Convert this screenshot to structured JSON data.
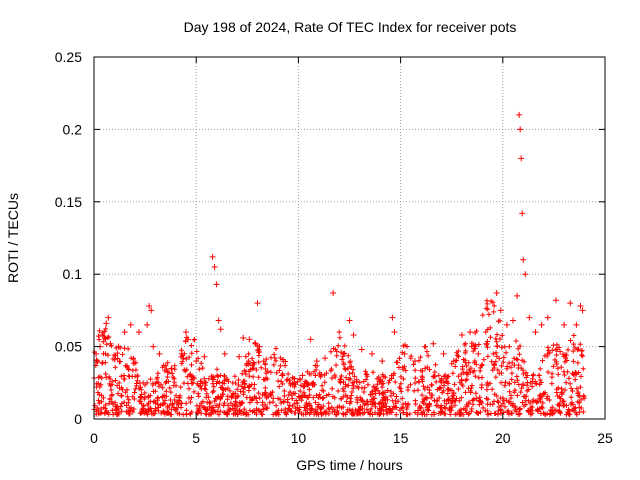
{
  "chart_data": {
    "type": "scatter",
    "title": "Day 198 of 2024, Rate Of TEC Index for receiver pots",
    "xlabel": "GPS time / hours",
    "ylabel": "ROTI / TECUs",
    "xlim": [
      0,
      25
    ],
    "ylim": [
      0,
      0.25
    ],
    "x_ticks": [
      0,
      5,
      10,
      15,
      20,
      25
    ],
    "y_ticks": [
      0,
      0.05,
      0.1,
      0.15,
      0.2,
      0.25
    ],
    "x_tick_labels": [
      "0",
      "5",
      "10",
      "15",
      "20",
      "25"
    ],
    "y_tick_labels": [
      "0",
      "0.05",
      "0.1",
      "0.15",
      "0.2",
      "0.25"
    ],
    "grid": true,
    "marker": "+",
    "color": "#ff0000",
    "series": [
      {
        "name": "pots",
        "x": [
          0.1,
          0.3,
          0.4,
          0.6,
          0.7,
          0.8,
          1.2,
          1.5,
          1.8,
          2.2,
          2.6,
          2.7,
          2.8,
          2.9,
          3.2,
          3.8,
          4.3,
          4.5,
          4.6,
          5.0,
          5.4,
          5.8,
          5.9,
          6.0,
          6.1,
          6.2,
          6.4,
          7.1,
          7.3,
          7.6,
          7.9,
          8.0,
          8.1,
          8.3,
          8.5,
          9.2,
          9.8,
          10.2,
          10.6,
          10.9,
          11.3,
          11.7,
          12.2,
          12.5,
          12.7,
          13.1,
          13.6,
          14.1,
          14.6,
          14.7,
          15.2,
          15.7,
          16.2,
          16.6,
          17.1,
          17.6,
          18.0,
          18.4,
          18.8,
          19.2,
          19.7,
          19.9,
          20.2,
          20.5,
          20.7,
          20.8,
          20.85,
          20.9,
          20.95,
          21.0,
          21.1,
          21.3,
          21.6,
          21.9,
          22.2,
          22.6,
          23.0,
          23.3,
          23.6,
          23.8,
          23.9
        ],
        "y": [
          0.045,
          0.05,
          0.058,
          0.066,
          0.07,
          0.052,
          0.05,
          0.06,
          0.065,
          0.06,
          0.065,
          0.078,
          0.075,
          0.05,
          0.045,
          0.035,
          0.045,
          0.06,
          0.055,
          0.04,
          0.043,
          0.112,
          0.105,
          0.093,
          0.068,
          0.062,
          0.045,
          0.043,
          0.056,
          0.055,
          0.052,
          0.08,
          0.05,
          0.04,
          0.033,
          0.03,
          0.025,
          0.03,
          0.055,
          0.04,
          0.042,
          0.087,
          0.045,
          0.068,
          0.058,
          0.048,
          0.045,
          0.04,
          0.07,
          0.06,
          0.045,
          0.04,
          0.035,
          0.052,
          0.045,
          0.04,
          0.058,
          0.06,
          0.045,
          0.052,
          0.087,
          0.075,
          0.065,
          0.068,
          0.085,
          0.21,
          0.2,
          0.18,
          0.142,
          0.11,
          0.1,
          0.07,
          0.06,
          0.065,
          0.07,
          0.082,
          0.065,
          0.08,
          0.065,
          0.078,
          0.075
        ]
      }
    ],
    "background_band": {
      "description": "dense cluster of ROTI values between 0.003 and 0.04 across all hours"
    }
  }
}
